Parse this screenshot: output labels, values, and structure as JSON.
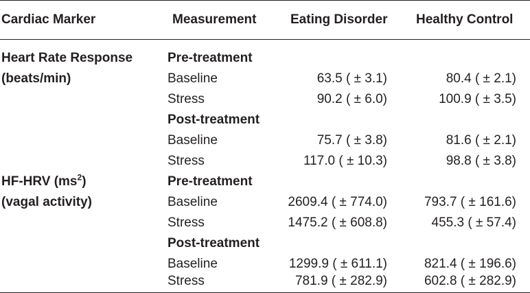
{
  "headers": {
    "cardiac_marker": "Cardiac Marker",
    "measurement": "Measurement",
    "eating_disorder": "Eating Disorder",
    "healthy_control": "Healthy Control"
  },
  "markers": [
    {
      "name_line1": "Heart Rate Response",
      "name_line2": "(beats/min)",
      "phases": [
        {
          "label": "Pre-treatment",
          "rows": [
            {
              "measurement": "Baseline",
              "eating_disorder": "63.5 ( ± 3.1)",
              "healthy_control": "80.4 ( ± 2.1)"
            },
            {
              "measurement": "Stress",
              "eating_disorder": "90.2 ( ± 6.0)",
              "healthy_control": "100.9 ( ± 3.5)"
            }
          ]
        },
        {
          "label": "Post-treatment",
          "rows": [
            {
              "measurement": "Baseline",
              "eating_disorder": "75.7 ( ± 3.8)",
              "healthy_control": "81.6 ( ± 2.1)"
            },
            {
              "measurement": "Stress",
              "eating_disorder": "117.0 ( ± 10.3)",
              "healthy_control": "98.8 ( ± 3.8)"
            }
          ]
        }
      ]
    },
    {
      "name_line1": "HF-HRV (ms",
      "name_line1_sup": "2",
      "name_line1_tail": ")",
      "name_line2": "(vagal activity)",
      "phases": [
        {
          "label": "Pre-treatment",
          "rows": [
            {
              "measurement": "Baseline",
              "eating_disorder": "2609.4 ( ± 774.0)",
              "healthy_control": "793.7 ( ± 161.6)"
            },
            {
              "measurement": "Stress",
              "eating_disorder": "1475.2 ( ± 608.8)",
              "healthy_control": "455.3 ( ± 57.4)"
            }
          ]
        },
        {
          "label": "Post-treatment",
          "rows": [
            {
              "measurement": "Baseline",
              "eating_disorder": "1299.9 ( ± 611.1)",
              "healthy_control": "821.4 ( ± 196.6)"
            },
            {
              "measurement": "Stress",
              "eating_disorder": "781.9 ( ± 282.9)",
              "healthy_control": "602.8 ( ± 282.9)"
            }
          ]
        }
      ]
    }
  ]
}
